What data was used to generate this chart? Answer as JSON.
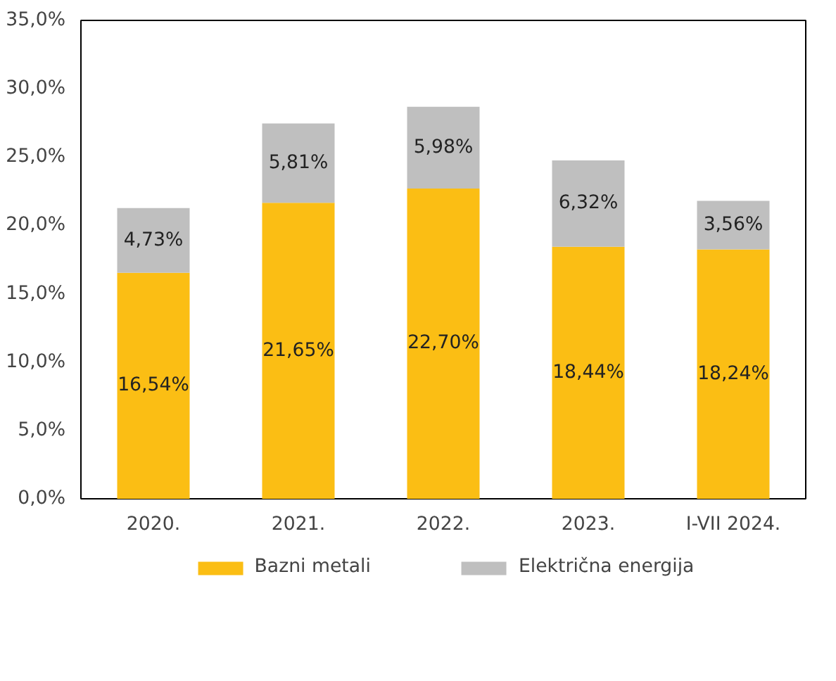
{
  "chart_data": {
    "type": "bar",
    "stacked": true,
    "categories": [
      "2020.",
      "2021.",
      "2022.",
      "2023.",
      "I-VII 2024."
    ],
    "series": [
      {
        "name": "Bazni metali",
        "color": "#fbbe14",
        "values": [
          16.54,
          21.65,
          22.7,
          18.44,
          18.24
        ],
        "value_labels": [
          "16,54%",
          "21,65%",
          "22,70%",
          "18,44%",
          "18,24%"
        ]
      },
      {
        "name": "Električna energija",
        "color": "#bfbfbf",
        "values": [
          4.73,
          5.81,
          5.98,
          6.32,
          3.56
        ],
        "value_labels": [
          "4,73%",
          "5,81%",
          "5,98%",
          "6,32%",
          "3,56%"
        ]
      }
    ],
    "ylim": [
      0,
      35
    ],
    "yticks": [
      {
        "value": 0,
        "label": "0,0%"
      },
      {
        "value": 5,
        "label": "5,0%"
      },
      {
        "value": 10,
        "label": "10,0%"
      },
      {
        "value": 15,
        "label": "15,0%"
      },
      {
        "value": 20,
        "label": "20,0%"
      },
      {
        "value": 25,
        "label": "25,0%"
      },
      {
        "value": 30,
        "label": "30,0%"
      },
      {
        "value": 35,
        "label": "35,0%"
      }
    ],
    "grid": false,
    "legend": "bottom"
  }
}
